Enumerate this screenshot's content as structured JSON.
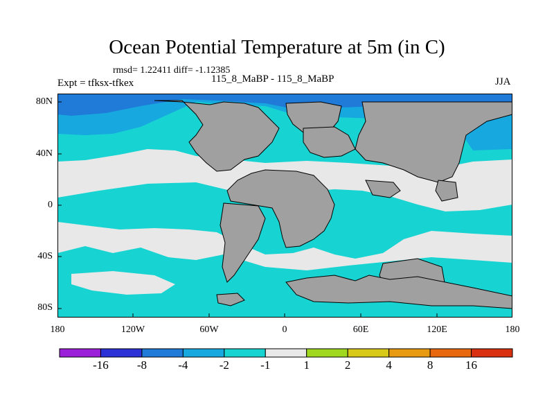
{
  "header": {
    "title": "Ocean Potential Temperature at 5m (in C)",
    "stats": "rmsd= 1.22411 diff= -1.12385",
    "experiment": "Expt = tfksx-tfkex",
    "subtitle": "115_8_MaBP - 115_8_MaBP",
    "season": "JJA"
  },
  "axes": {
    "lat_labels": [
      "80N",
      "40N",
      "0",
      "40S",
      "80S"
    ],
    "lon_labels": [
      "180",
      "120W",
      "60W",
      "0",
      "60E",
      "120E",
      "180"
    ]
  },
  "colorbar": {
    "labels": [
      "-16",
      "-8",
      "-4",
      "-2",
      "-1",
      "1",
      "2",
      "4",
      "8",
      "16"
    ],
    "colors": [
      "#9b1fd8",
      "#2d32d6",
      "#1f7ad8",
      "#18a8e0",
      "#17d4d2",
      "#e8e8e8",
      "#a0d820",
      "#d8c818",
      "#e89a10",
      "#e86810",
      "#d83010"
    ]
  },
  "map_colors": {
    "land": "#a0a0a0",
    "neutral": "#e8e8e8",
    "cool": "#17d4d2",
    "cooler": "#18a8e0",
    "coldest": "#1f7ad8"
  }
}
